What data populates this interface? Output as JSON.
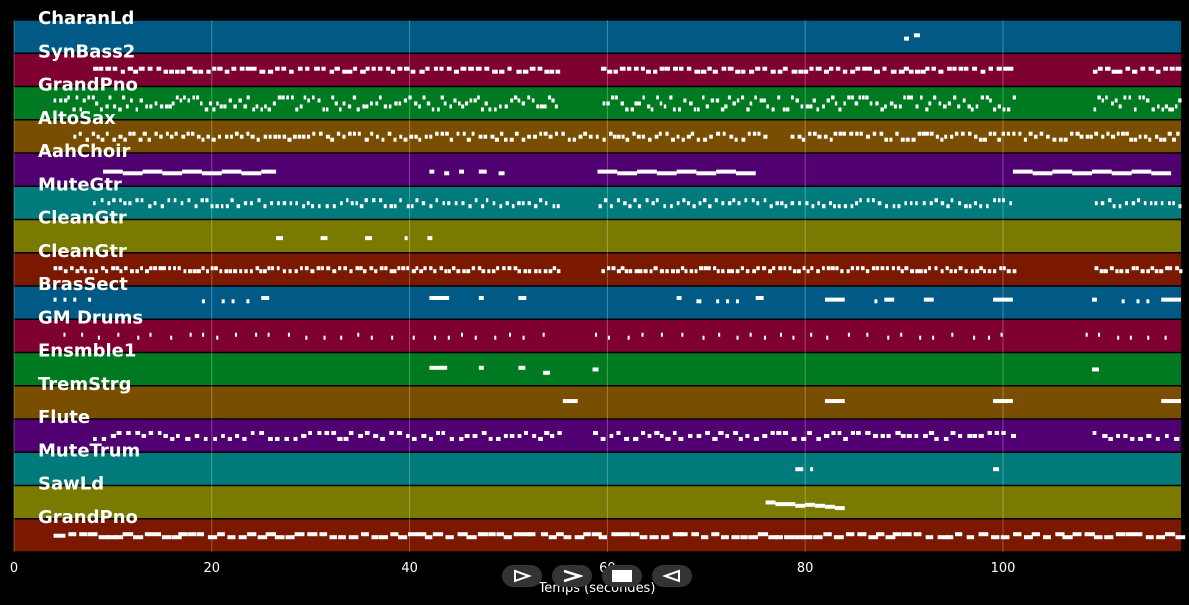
{
  "chart_data": {
    "type": "piano-roll",
    "xlabel": "Temps (secondes)",
    "xlim": [
      0,
      118
    ],
    "xticks": [
      0,
      20,
      40,
      60,
      80,
      100
    ],
    "grid": true,
    "tracks": [
      {
        "name": "CharanLd",
        "color": "#005a85",
        "notes": [
          [
            90,
            0.5,
            0.5
          ],
          [
            91,
            0.6,
            0.4
          ]
        ]
      },
      {
        "name": "SynBass2",
        "color": "#7e0030",
        "pattern": {
          "start": 8,
          "end": 118,
          "step": 0.7,
          "gaps": [
            [
              55,
              59
            ],
            [
              101,
              109
            ]
          ],
          "dur": 0.5,
          "lanes": 2
        }
      },
      {
        "name": "GrandPno",
        "color": "#007a20",
        "pattern": {
          "start": 4,
          "end": 118,
          "step": 0.45,
          "gaps": [
            [
              55,
              59
            ],
            [
              101,
              109
            ]
          ],
          "dur": 0.3,
          "lanes": 5
        }
      },
      {
        "name": "AltoSax",
        "color": "#7a4e00",
        "pattern": {
          "start": 6,
          "end": 118,
          "step": 0.55,
          "gaps": [
            [
              76,
              78
            ]
          ],
          "dur": 0.35,
          "lanes": 3
        }
      },
      {
        "name": "AahChoir",
        "color": "#500070",
        "notes": [
          [
            9,
            2,
            0.5
          ],
          [
            11,
            2,
            0.55
          ],
          [
            13,
            2,
            0.5
          ],
          [
            15,
            2,
            0.55
          ],
          [
            17,
            2,
            0.5
          ],
          [
            19,
            2,
            0.55
          ],
          [
            21,
            2,
            0.5
          ],
          [
            23,
            2,
            0.55
          ],
          [
            25,
            1.5,
            0.5
          ],
          [
            42,
            0.5,
            0.5
          ],
          [
            43.5,
            0.5,
            0.55
          ],
          [
            45,
            0.5,
            0.5
          ],
          [
            47,
            0.8,
            0.5
          ],
          [
            49,
            0.6,
            0.55
          ],
          [
            59,
            2,
            0.5
          ],
          [
            61,
            2,
            0.55
          ],
          [
            63,
            2,
            0.5
          ],
          [
            65,
            2,
            0.55
          ],
          [
            67,
            2,
            0.5
          ],
          [
            69,
            2,
            0.55
          ],
          [
            71,
            2,
            0.5
          ],
          [
            73,
            2,
            0.55
          ],
          [
            101,
            2,
            0.5
          ],
          [
            103,
            2,
            0.55
          ],
          [
            105,
            2,
            0.5
          ],
          [
            107,
            2,
            0.55
          ],
          [
            109,
            2,
            0.5
          ],
          [
            111,
            2,
            0.55
          ],
          [
            113,
            2,
            0.5
          ],
          [
            115,
            2,
            0.55
          ]
        ]
      },
      {
        "name": "MuteGtr",
        "color": "#007a7a",
        "pattern": {
          "start": 8,
          "end": 118,
          "step": 0.6,
          "gaps": [
            [
              55,
              59
            ],
            [
              101,
              109
            ]
          ],
          "dur": 0.3,
          "lanes": 3
        }
      },
      {
        "name": "CleanGtr",
        "color": "#7a7a00",
        "notes": [
          [
            26.5,
            0.7,
            0.5
          ],
          [
            31,
            0.7,
            0.5
          ],
          [
            35.5,
            0.7,
            0.5
          ],
          [
            39.5,
            0.3,
            0.5
          ],
          [
            41.8,
            0.5,
            0.5
          ]
        ]
      },
      {
        "name": "CleanGtr",
        "color": "#7a1800",
        "pattern": {
          "start": 4,
          "end": 118,
          "step": 0.5,
          "gaps": [
            [
              55,
              59
            ],
            [
              101,
              109
            ]
          ],
          "dur": 0.35,
          "lanes": 2
        }
      },
      {
        "name": "BrasSect",
        "color": "#005a85",
        "notes": [
          [
            4,
            0.3,
            0.35
          ],
          [
            5,
            0.3,
            0.35
          ],
          [
            6,
            0.3,
            0.35
          ],
          [
            7.5,
            0.3,
            0.35
          ],
          [
            19,
            0.3,
            0.4
          ],
          [
            21,
            0.3,
            0.4
          ],
          [
            22,
            0.3,
            0.4
          ],
          [
            23.5,
            0.3,
            0.4
          ],
          [
            25,
            0.8,
            0.3
          ],
          [
            42,
            2,
            0.3
          ],
          [
            47,
            0.5,
            0.3
          ],
          [
            51,
            0.8,
            0.3
          ],
          [
            67,
            0.5,
            0.3
          ],
          [
            69,
            0.5,
            0.4
          ],
          [
            71,
            0.3,
            0.4
          ],
          [
            72,
            0.3,
            0.4
          ],
          [
            73,
            0.3,
            0.4
          ],
          [
            75,
            0.8,
            0.3
          ],
          [
            82,
            2,
            0.35
          ],
          [
            87,
            0.3,
            0.4
          ],
          [
            88,
            1,
            0.35
          ],
          [
            92,
            1,
            0.35
          ],
          [
            99,
            2,
            0.35
          ],
          [
            109,
            0.5,
            0.35
          ],
          [
            112,
            0.3,
            0.4
          ],
          [
            113.5,
            0.3,
            0.4
          ],
          [
            114.5,
            0.3,
            0.4
          ],
          [
            116,
            2,
            0.35
          ]
        ]
      },
      {
        "name": "GM Drums",
        "color": "#7e0030",
        "pattern": {
          "start": 5,
          "end": 118,
          "step": 1.7,
          "gaps": [
            [
              55,
              58
            ],
            [
              101,
              107
            ]
          ],
          "dur": 0.12,
          "lanes": 2
        }
      },
      {
        "name": "Ensmble1",
        "color": "#007a20",
        "notes": [
          [
            42,
            1.8,
            0.4
          ],
          [
            47,
            0.5,
            0.4
          ],
          [
            51,
            0.7,
            0.4
          ],
          [
            53.5,
            0.7,
            0.55
          ],
          [
            58.5,
            0.6,
            0.45
          ],
          [
            109,
            0.7,
            0.45
          ]
        ]
      },
      {
        "name": "TremStrg",
        "color": "#7a4e00",
        "notes": [
          [
            55.5,
            1.5,
            0.4
          ],
          [
            82,
            2,
            0.4
          ],
          [
            99,
            2,
            0.4
          ],
          [
            116,
            2,
            0.4
          ]
        ]
      },
      {
        "name": "Flute",
        "color": "#500070",
        "pattern": {
          "start": 8,
          "end": 118,
          "step": 0.75,
          "gaps": [
            [
              55,
              58
            ],
            [
              101,
              109
            ]
          ],
          "dur": 0.45,
          "lanes": 3
        }
      },
      {
        "name": "MuteTrum",
        "color": "#007a7a",
        "notes": [
          [
            79,
            0.8,
            0.45
          ],
          [
            80.5,
            0.3,
            0.45
          ],
          [
            99,
            0.6,
            0.45
          ]
        ]
      },
      {
        "name": "SawLd",
        "color": "#7a7a00",
        "notes": [
          [
            76,
            1,
            0.45
          ],
          [
            77,
            1,
            0.5
          ],
          [
            78,
            1,
            0.5
          ],
          [
            79,
            1,
            0.55
          ],
          [
            80,
            1,
            0.52
          ],
          [
            81,
            1,
            0.55
          ],
          [
            82,
            1,
            0.58
          ],
          [
            83,
            1,
            0.62
          ]
        ]
      },
      {
        "name": "GrandPno",
        "color": "#7a1800",
        "pattern": {
          "start": 4,
          "end": 118,
          "step": 1.0,
          "gaps": [],
          "dur": 0.9,
          "lanes": 2,
          "first": 5.5
        }
      }
    ]
  },
  "controls": {
    "play_label": "play",
    "forward_label": "forward",
    "stop_label": "stop",
    "rewind_label": "rewind"
  }
}
